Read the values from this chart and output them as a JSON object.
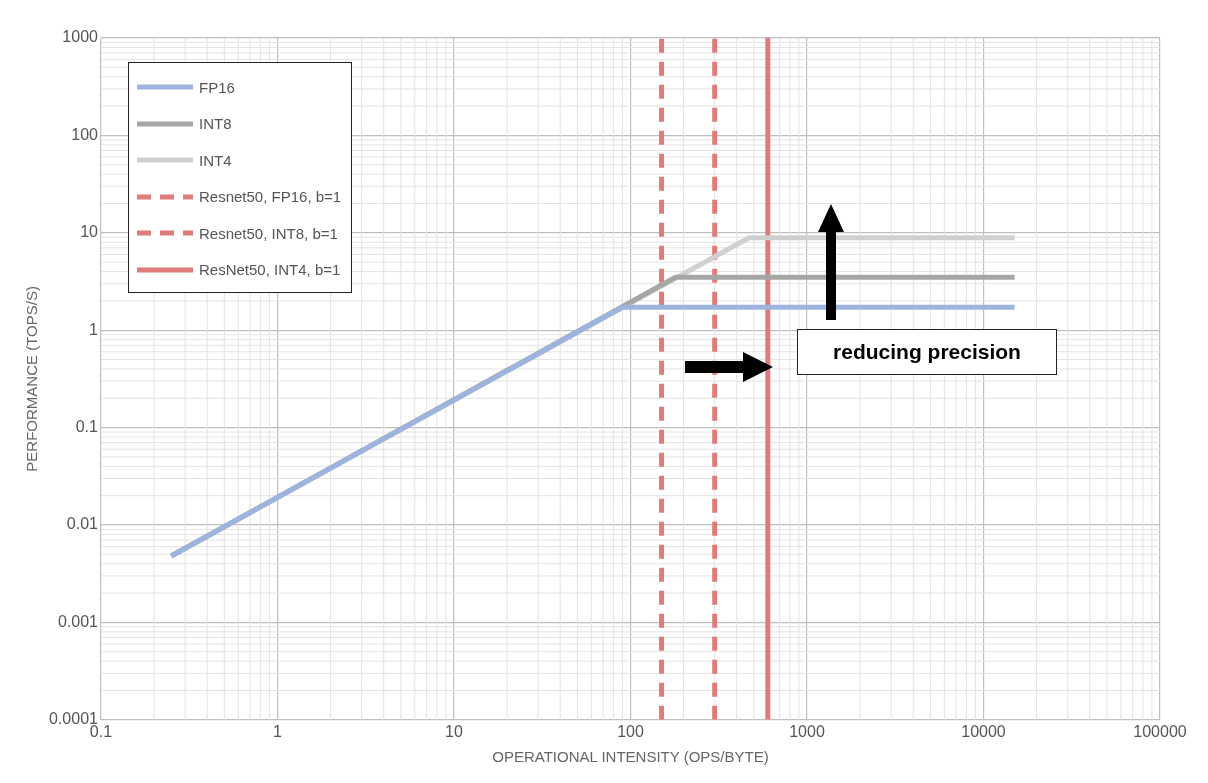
{
  "chart_data": {
    "type": "line",
    "xlabel": "OPERATIONAL INTENSITY (OPS/BYTE)",
    "ylabel": "PERFORMANCE (TOPS/S)",
    "log": "xy",
    "xlim": [
      0.1,
      100000
    ],
    "xticks": [
      0.1,
      1,
      10,
      100,
      1000,
      10000,
      100000
    ],
    "ylim": [
      0.0001,
      1000
    ],
    "yticks": [
      0.0001,
      0.001,
      0.01,
      0.1,
      1,
      10,
      100,
      1000
    ],
    "grid": true,
    "legend": "top left",
    "series": [
      {
        "name": "FP16",
        "color": "#9db4de",
        "x": [
          0.25,
          90,
          15000
        ],
        "values": [
          0.0048,
          1.72,
          1.72
        ]
      },
      {
        "name": "INT8",
        "color": "#a6a6a6",
        "x": [
          0.25,
          180,
          15000
        ],
        "values": [
          0.0048,
          3.5,
          3.5
        ]
      },
      {
        "name": "INT4",
        "color": "#d0d0d0",
        "x": [
          0.25,
          470,
          15000
        ],
        "values": [
          0.0048,
          8.9,
          8.9
        ]
      },
      {
        "name": "Resnet50, FP16, b=1",
        "color": "#e07b7b",
        "line_style": "dashed",
        "x": [
          150,
          150
        ],
        "values": [
          0.0001,
          1000
        ]
      },
      {
        "name": "Resnet50, INT8, b=1",
        "color": "#e07b7b",
        "line_style": "dashed",
        "x": [
          300,
          300
        ],
        "values": [
          0.0001,
          1000
        ]
      },
      {
        "name": "ResNet50, INT4, b=1",
        "color": "#e07b7b",
        "line_style": "solid",
        "x": [
          600,
          600
        ],
        "values": [
          0.0001,
          1000
        ]
      }
    ],
    "annotations": [
      "reducing precision"
    ]
  }
}
